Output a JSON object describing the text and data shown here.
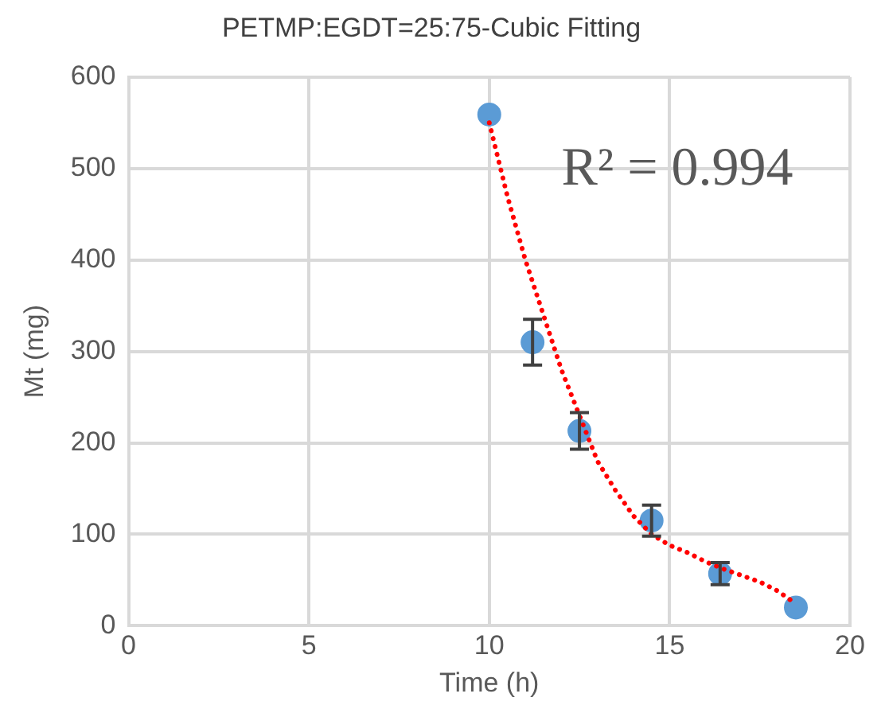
{
  "chart_data": {
    "type": "scatter",
    "title": "PETMP:EGDT=25:75-Cubic Fitting",
    "xlabel": "Time (h)",
    "ylabel": "Mt (mg)",
    "xlim": [
      0,
      20
    ],
    "xticks": [
      0,
      5,
      10,
      15,
      20
    ],
    "ylim": [
      0,
      600
    ],
    "yticks": [
      0,
      100,
      200,
      300,
      400,
      500,
      600
    ],
    "grid": true,
    "legend": false,
    "annotations": [
      "R² = 0.994"
    ],
    "series": [
      {
        "color": "#5b9bd5",
        "marker": "circle",
        "x": [
          10,
          11.2,
          12.5,
          14.5,
          16.4,
          18.5
        ],
        "values": [
          559,
          310,
          213,
          115,
          57,
          20
        ],
        "errors": [
          null,
          25,
          20,
          17,
          12,
          null
        ]
      },
      {
        "type": "line",
        "color": "#ff0000",
        "line_style": "dotted",
        "marker": "none",
        "x": [
          10,
          10.5,
          11,
          11.5,
          12,
          12.5,
          13,
          13.5,
          14,
          14.5,
          15,
          15.5,
          16,
          16.5,
          17,
          17.5,
          18,
          18.5
        ],
        "values": [
          550,
          470,
          400,
          340,
          280,
          230,
          180,
          148,
          120,
          100,
          88,
          80,
          70,
          62,
          55,
          48,
          38,
          24
        ]
      }
    ]
  }
}
